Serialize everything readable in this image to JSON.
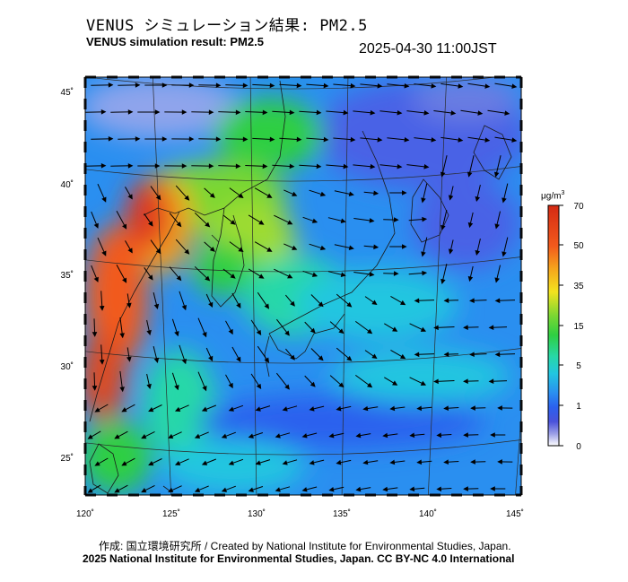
{
  "header": {
    "title_jp": "VENUS シミュレーション結果: PM2.5",
    "title_en": "VENUS simulation result: PM2.5",
    "timestamp": "2025-04-30 11:00JST"
  },
  "map": {
    "lon_ticks": [
      "120˚",
      "125˚",
      "130˚",
      "135˚",
      "140˚",
      "145˚"
    ],
    "lat_ticks": [
      "45˚",
      "40˚",
      "35˚",
      "30˚",
      "25˚"
    ],
    "lon_range": [
      120,
      145
    ],
    "lat_range": [
      23,
      46
    ]
  },
  "colorbar": {
    "unit_base": "μg/m",
    "unit_exp": "3",
    "ticks": [
      "70",
      "50",
      "35",
      "15",
      "5",
      "1",
      "0"
    ],
    "colors": [
      "#d42a14",
      "#f25a1c",
      "#f5a21c",
      "#f3e31e",
      "#7ad733",
      "#2fcf42",
      "#27d8a8",
      "#22c6e0",
      "#2a8ff0",
      "#2b60ee",
      "#4a52da",
      "#9a9ee6",
      "#ffffff"
    ]
  },
  "footer": {
    "credit": "作成: 国立環境研究所 / Created by National Institute for Environmental Studies, Japan.",
    "license": "2025 National Institute for Environmental Studies, Japan. CC BY-NC 4.0 International"
  }
}
